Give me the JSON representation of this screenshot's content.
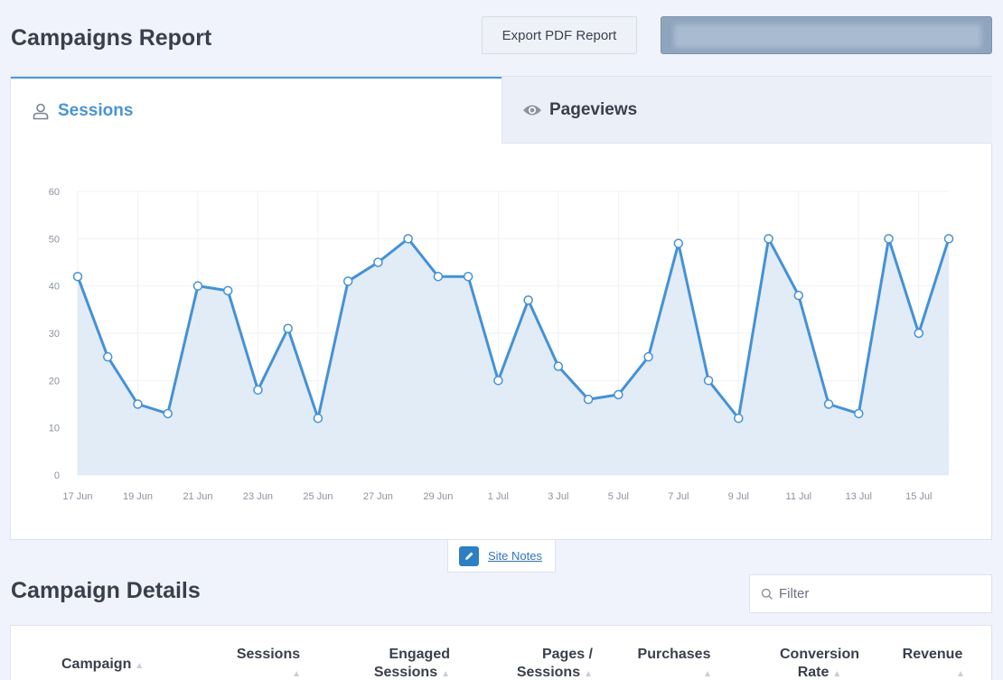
{
  "header": {
    "title": "Campaigns Report",
    "export_label": "Export PDF Report"
  },
  "tabs": [
    {
      "label": "Sessions",
      "icon": "user-icon",
      "active": true
    },
    {
      "label": "Pageviews",
      "icon": "eye-icon",
      "active": false
    }
  ],
  "chart_data": {
    "type": "area",
    "x": [
      "17 Jun",
      "18 Jun",
      "19 Jun",
      "20 Jun",
      "21 Jun",
      "22 Jun",
      "23 Jun",
      "24 Jun",
      "25 Jun",
      "26 Jun",
      "27 Jun",
      "28 Jun",
      "29 Jun",
      "30 Jun",
      "1 Jul",
      "2 Jul",
      "3 Jul",
      "4 Jul",
      "5 Jul",
      "6 Jul",
      "7 Jul",
      "8 Jul",
      "9 Jul",
      "10 Jul",
      "11 Jul",
      "12 Jul",
      "13 Jul",
      "14 Jul",
      "15 Jul",
      "16 Jul"
    ],
    "x_tick_labels": [
      "17 Jun",
      "19 Jun",
      "21 Jun",
      "23 Jun",
      "25 Jun",
      "27 Jun",
      "29 Jun",
      "1 Jul",
      "3 Jul",
      "5 Jul",
      "7 Jul",
      "9 Jul",
      "11 Jul",
      "13 Jul",
      "15 Jul"
    ],
    "series": [
      {
        "values": [
          42,
          25,
          15,
          13,
          40,
          39,
          18,
          31,
          12,
          41,
          45,
          50,
          42,
          42,
          20,
          37,
          23,
          16,
          17,
          25,
          49,
          20,
          12,
          50,
          38,
          15,
          13,
          50,
          30,
          50
        ],
        "color": "#4591d6"
      }
    ],
    "y_ticks": [
      0,
      10,
      20,
      30,
      40,
      50,
      60
    ],
    "ylim": [
      0,
      60
    ],
    "grid": true,
    "fill_color": "#dce9f6"
  },
  "site_notes": {
    "label": "Site Notes"
  },
  "details": {
    "title": "Campaign Details",
    "filter_placeholder": "Filter",
    "columns": [
      {
        "line1": "Campaign",
        "line2": ""
      },
      {
        "line1": "Sessions",
        "line2": ""
      },
      {
        "line1": "Engaged",
        "line2": "Sessions"
      },
      {
        "line1": "Pages /",
        "line2": "Sessions"
      },
      {
        "line1": "Purchases",
        "line2": ""
      },
      {
        "line1": "Conversion",
        "line2": "Rate"
      },
      {
        "line1": "Revenue",
        "line2": ""
      }
    ]
  },
  "colors": {
    "accent": "#4a94d3",
    "line": "#4591d6",
    "page_bg": "#f0f3fb"
  }
}
